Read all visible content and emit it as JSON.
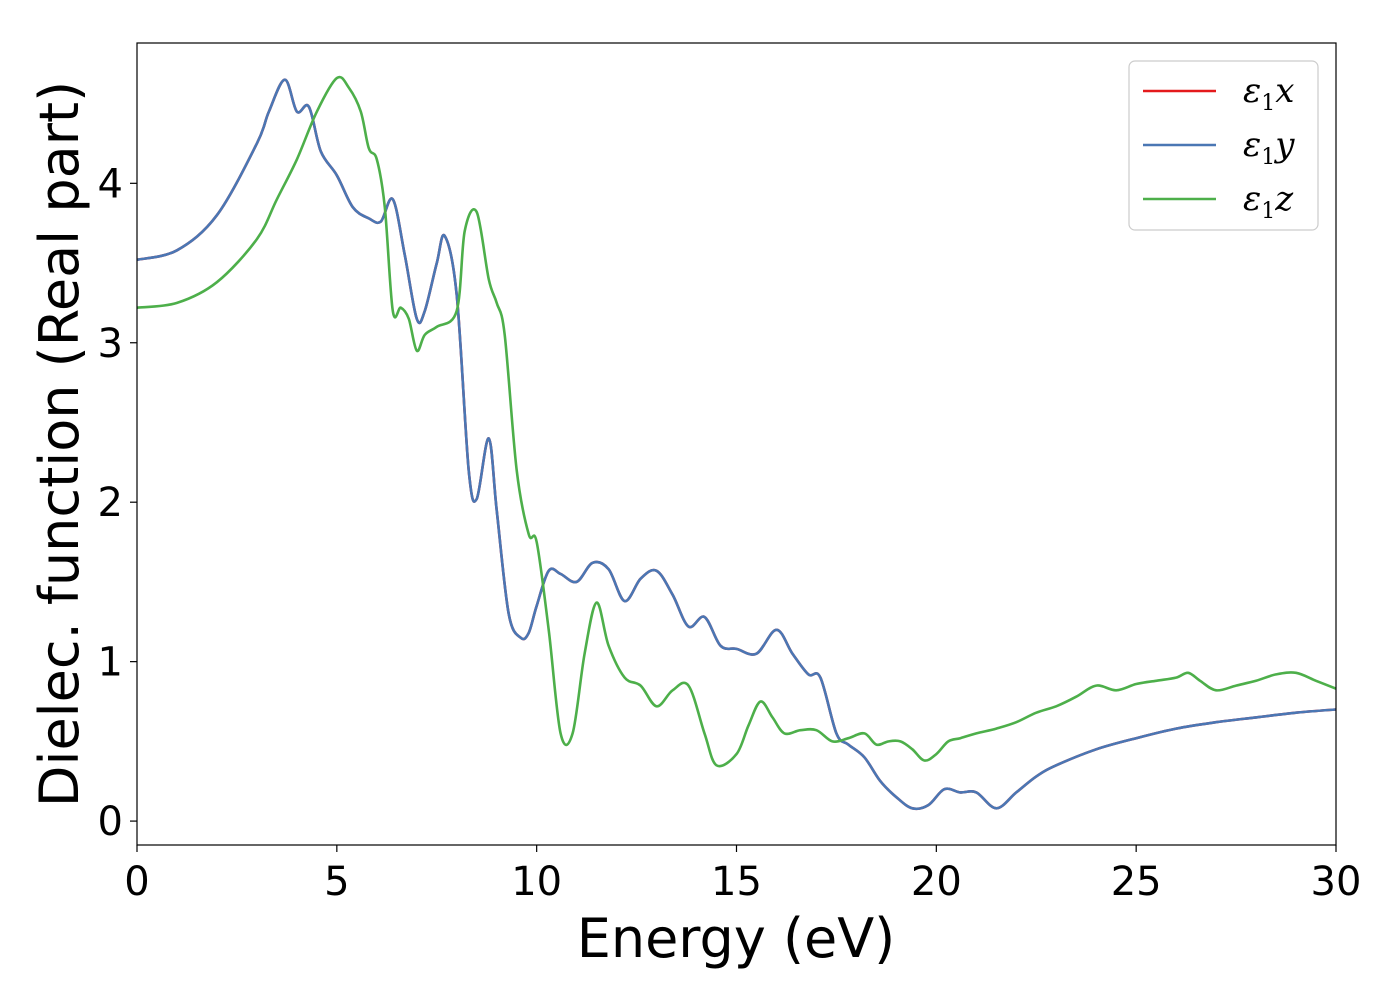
{
  "chart_data": {
    "type": "line",
    "xlabel": "Energy (eV)",
    "ylabel": "Dielec. function (Real part)",
    "xlim": [
      0,
      30
    ],
    "ylim": [
      -0.15,
      4.88
    ],
    "xticks": [
      0,
      5,
      10,
      15,
      20,
      25,
      30
    ],
    "yticks": [
      0,
      1,
      2,
      3,
      4
    ],
    "grid": false,
    "legend_position": "top-right",
    "series": [
      {
        "name": "ε1x",
        "legend_base": "ε",
        "legend_sub": "1",
        "legend_var": "x",
        "color": "#e41a1c",
        "x": [
          0,
          1,
          2,
          3,
          3.3,
          3.7,
          4,
          4.3,
          4.6,
          5,
          5.4,
          5.8,
          6.1,
          6.4,
          6.7,
          7,
          7.2,
          7.5,
          7.7,
          8,
          8.3,
          8.5,
          8.8,
          9,
          9.3,
          9.6,
          9.8,
          10,
          10.3,
          10.6,
          11,
          11.4,
          11.8,
          12.2,
          12.6,
          13,
          13.4,
          13.8,
          14.2,
          14.6,
          15,
          15.5,
          16,
          16.4,
          16.8,
          17.1,
          17.5,
          17.8,
          18.2,
          18.6,
          19,
          19.4,
          19.8,
          20.2,
          20.6,
          21,
          21.5,
          22,
          22.5,
          23,
          24,
          25,
          26,
          27,
          28,
          29,
          30
        ],
        "y": [
          3.52,
          3.58,
          3.8,
          4.25,
          4.45,
          4.65,
          4.45,
          4.48,
          4.2,
          4.05,
          3.85,
          3.78,
          3.76,
          3.9,
          3.55,
          3.15,
          3.2,
          3.5,
          3.67,
          3.3,
          2.2,
          2.02,
          2.4,
          1.95,
          1.3,
          1.15,
          1.18,
          1.35,
          1.57,
          1.55,
          1.5,
          1.62,
          1.58,
          1.38,
          1.52,
          1.57,
          1.42,
          1.22,
          1.28,
          1.1,
          1.08,
          1.05,
          1.2,
          1.05,
          0.92,
          0.9,
          0.55,
          0.48,
          0.4,
          0.25,
          0.15,
          0.08,
          0.1,
          0.2,
          0.18,
          0.18,
          0.08,
          0.18,
          0.28,
          0.35,
          0.45,
          0.52,
          0.58,
          0.62,
          0.65,
          0.68,
          0.7
        ]
      },
      {
        "name": "ε1y",
        "legend_base": "ε",
        "legend_sub": "1",
        "legend_var": "y",
        "color": "#4a77b4",
        "x": [
          0,
          1,
          2,
          3,
          3.3,
          3.7,
          4,
          4.3,
          4.6,
          5,
          5.4,
          5.8,
          6.1,
          6.4,
          6.7,
          7,
          7.2,
          7.5,
          7.7,
          8,
          8.3,
          8.5,
          8.8,
          9,
          9.3,
          9.6,
          9.8,
          10,
          10.3,
          10.6,
          11,
          11.4,
          11.8,
          12.2,
          12.6,
          13,
          13.4,
          13.8,
          14.2,
          14.6,
          15,
          15.5,
          16,
          16.4,
          16.8,
          17.1,
          17.5,
          17.8,
          18.2,
          18.6,
          19,
          19.4,
          19.8,
          20.2,
          20.6,
          21,
          21.5,
          22,
          22.5,
          23,
          24,
          25,
          26,
          27,
          28,
          29,
          30
        ],
        "y": [
          3.52,
          3.58,
          3.8,
          4.25,
          4.45,
          4.65,
          4.45,
          4.48,
          4.2,
          4.05,
          3.85,
          3.78,
          3.76,
          3.9,
          3.55,
          3.15,
          3.2,
          3.5,
          3.67,
          3.3,
          2.2,
          2.02,
          2.4,
          1.95,
          1.3,
          1.15,
          1.18,
          1.35,
          1.57,
          1.55,
          1.5,
          1.62,
          1.58,
          1.38,
          1.52,
          1.57,
          1.42,
          1.22,
          1.28,
          1.1,
          1.08,
          1.05,
          1.2,
          1.05,
          0.92,
          0.9,
          0.55,
          0.48,
          0.4,
          0.25,
          0.15,
          0.08,
          0.1,
          0.2,
          0.18,
          0.18,
          0.08,
          0.18,
          0.28,
          0.35,
          0.45,
          0.52,
          0.58,
          0.62,
          0.65,
          0.68,
          0.7
        ]
      },
      {
        "name": "ε1z",
        "legend_base": "ε",
        "legend_sub": "1",
        "legend_var": "z",
        "color": "#4daf4a",
        "x": [
          0,
          1,
          2,
          3,
          3.5,
          4,
          4.5,
          5,
          5.3,
          5.6,
          5.8,
          6,
          6.2,
          6.4,
          6.6,
          6.8,
          7,
          7.2,
          7.5,
          8,
          8.2,
          8.5,
          8.8,
          9,
          9.2,
          9.5,
          9.8,
          10,
          10.3,
          10.6,
          10.9,
          11.2,
          11.5,
          11.8,
          12.2,
          12.6,
          13,
          13.4,
          13.8,
          14.2,
          14.5,
          15,
          15.3,
          15.6,
          15.9,
          16.2,
          16.6,
          17,
          17.4,
          17.8,
          18.2,
          18.5,
          18.8,
          19.1,
          19.4,
          19.7,
          20,
          20.3,
          20.6,
          21,
          21.5,
          22,
          22.5,
          23,
          23.5,
          24,
          24.5,
          25,
          25.5,
          26,
          26.3,
          26.6,
          27,
          27.5,
          28,
          28.5,
          29,
          29.5,
          30
        ],
        "y": [
          3.22,
          3.25,
          3.38,
          3.65,
          3.9,
          4.15,
          4.45,
          4.66,
          4.6,
          4.45,
          4.22,
          4.15,
          3.85,
          3.2,
          3.22,
          3.15,
          2.95,
          3.05,
          3.1,
          3.2,
          3.7,
          3.82,
          3.4,
          3.25,
          3.05,
          2.2,
          1.8,
          1.75,
          1.2,
          0.55,
          0.55,
          1.05,
          1.37,
          1.1,
          0.9,
          0.85,
          0.72,
          0.82,
          0.85,
          0.55,
          0.35,
          0.42,
          0.6,
          0.75,
          0.65,
          0.55,
          0.57,
          0.57,
          0.5,
          0.52,
          0.55,
          0.48,
          0.5,
          0.5,
          0.45,
          0.38,
          0.42,
          0.5,
          0.52,
          0.55,
          0.58,
          0.62,
          0.68,
          0.72,
          0.78,
          0.85,
          0.82,
          0.86,
          0.88,
          0.9,
          0.93,
          0.88,
          0.82,
          0.85,
          0.88,
          0.92,
          0.93,
          0.88,
          0.83
        ]
      }
    ]
  }
}
